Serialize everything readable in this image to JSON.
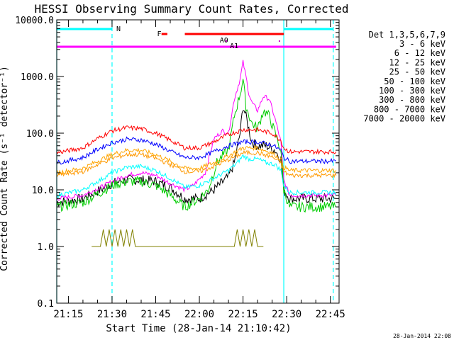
{
  "chart_data": {
    "type": "line",
    "title": "HESSI Observing Summary Count Rates, Corrected",
    "xlabel": "Start Time (28-Jan-14 21:10:42)",
    "ylabel": "Corrected Count Rate (s⁻¹ detector⁻¹)",
    "y_scale": "log",
    "ylim": [
      0.1,
      10000
    ],
    "xlim": [
      "21:11:00",
      "22:48:00"
    ],
    "x_ticks": [
      "21:15",
      "21:30",
      "21:45",
      "22:00",
      "22:15",
      "22:30",
      "22:45"
    ],
    "y_ticks": [
      "0.1",
      "1.0",
      "10.0",
      "100.0",
      "1000.0",
      "10000.0"
    ],
    "legend_title": "Det 1,3,5,6,7,9",
    "legend_position": "right",
    "series": [
      {
        "name": "3 - 6 keV",
        "color": "#000000",
        "x": [
          "21:11",
          "21:20",
          "21:26",
          "21:30",
          "21:35",
          "21:40",
          "21:45",
          "21:50",
          "21:55",
          "22:00",
          "22:05",
          "22:10",
          "22:12",
          "22:14",
          "22:15",
          "22:16",
          "22:18",
          "22:20",
          "22:23",
          "22:26",
          "22:28",
          "22:29",
          "22:31",
          "22:35",
          "22:40",
          "22:47"
        ],
        "values": [
          6,
          7,
          10,
          13,
          15,
          15,
          14,
          11,
          7,
          7,
          10,
          17,
          30,
          100,
          300,
          200,
          70,
          60,
          60,
          50,
          35,
          10,
          7,
          7,
          7,
          7
        ]
      },
      {
        "name": "6 - 12 keV",
        "color": "#ff00ff",
        "x": [
          "21:11",
          "21:20",
          "21:26",
          "21:30",
          "21:35",
          "21:40",
          "21:45",
          "21:50",
          "21:55",
          "21:58",
          "22:02",
          "22:05",
          "22:08",
          "22:10",
          "22:12",
          "22:14",
          "22:15",
          "22:16",
          "22:17",
          "22:18",
          "22:20",
          "22:22",
          "22:24",
          "22:26",
          "22:28",
          "22:29",
          "22:31",
          "22:35",
          "22:40",
          "22:47"
        ],
        "values": [
          7,
          8,
          11,
          14,
          18,
          20,
          18,
          13,
          10,
          12,
          20,
          80,
          110,
          100,
          400,
          900,
          1800,
          1000,
          500,
          350,
          250,
          450,
          400,
          180,
          70,
          15,
          8,
          8,
          8,
          8
        ]
      },
      {
        "name": "12 - 25 keV",
        "color": "#00cc00",
        "x": [
          "21:11",
          "21:20",
          "21:26",
          "21:30",
          "21:35",
          "21:40",
          "21:45",
          "21:50",
          "21:55",
          "22:00",
          "22:03",
          "22:06",
          "22:08",
          "22:10",
          "22:12",
          "22:14",
          "22:15",
          "22:16",
          "22:18",
          "22:20",
          "22:22",
          "22:24",
          "22:26",
          "22:28",
          "22:29",
          "22:31",
          "22:35",
          "22:40",
          "22:47"
        ],
        "values": [
          5,
          6,
          9,
          12,
          14,
          14,
          12,
          8,
          5,
          7,
          10,
          30,
          40,
          50,
          200,
          500,
          900,
          300,
          150,
          120,
          250,
          200,
          100,
          50,
          10,
          5,
          5,
          5,
          5
        ]
      },
      {
        "name": "25 - 50 keV",
        "color": "#00ffff",
        "x": [
          "21:11",
          "21:20",
          "21:26",
          "21:30",
          "21:35",
          "21:40",
          "21:45",
          "21:50",
          "21:55",
          "22:00",
          "22:05",
          "22:10",
          "22:13",
          "22:15",
          "22:17",
          "22:20",
          "22:23",
          "22:26",
          "22:28",
          "22:29",
          "22:31",
          "22:35",
          "22:40",
          "22:47"
        ],
        "values": [
          8,
          10,
          15,
          20,
          25,
          26,
          22,
          16,
          11,
          12,
          16,
          22,
          30,
          40,
          35,
          35,
          30,
          28,
          22,
          12,
          9,
          9,
          9,
          9
        ]
      },
      {
        "name": "50 - 100 keV",
        "color": "#ffa500",
        "x": [
          "21:11",
          "21:20",
          "21:25",
          "21:30",
          "21:35",
          "21:40",
          "21:45",
          "21:50",
          "21:55",
          "22:00",
          "22:05",
          "22:10",
          "22:15",
          "22:20",
          "22:25",
          "22:28",
          "22:29",
          "22:31",
          "22:35",
          "22:40",
          "22:47"
        ],
        "values": [
          20,
          24,
          32,
          42,
          50,
          50,
          42,
          32,
          24,
          24,
          30,
          40,
          55,
          55,
          45,
          35,
          25,
          22,
          22,
          22,
          22
        ]
      },
      {
        "name": "100 - 300 keV",
        "color": "#ff0000",
        "x": [
          "21:11",
          "21:20",
          "21:25",
          "21:30",
          "21:35",
          "21:40",
          "21:45",
          "21:50",
          "21:55",
          "22:00",
          "22:05",
          "22:10",
          "22:15",
          "22:20",
          "22:25",
          "22:28",
          "22:29",
          "22:31",
          "22:35",
          "22:40",
          "22:47"
        ],
        "values": [
          45,
          55,
          80,
          110,
          125,
          120,
          100,
          75,
          55,
          55,
          70,
          95,
          115,
          115,
          100,
          75,
          55,
          47,
          47,
          47,
          47
        ]
      },
      {
        "name": "300 - 800 keV",
        "color": "#0000ff",
        "x": [
          "21:11",
          "21:20",
          "21:25",
          "21:30",
          "21:35",
          "21:40",
          "21:45",
          "21:50",
          "21:55",
          "22:00",
          "22:05",
          "22:10",
          "22:15",
          "22:20",
          "22:25",
          "22:28",
          "22:29",
          "22:31",
          "22:35",
          "22:40",
          "22:47"
        ],
        "values": [
          30,
          37,
          52,
          68,
          78,
          76,
          64,
          48,
          37,
          37,
          47,
          60,
          70,
          70,
          62,
          50,
          37,
          32,
          32,
          32,
          32
        ]
      },
      {
        "name": "800 - 7000 keV",
        "color": "#ff9900",
        "x": [
          "21:11",
          "21:20",
          "21:25",
          "21:30",
          "21:35",
          "21:40",
          "21:45",
          "21:50",
          "21:55",
          "22:00",
          "22:05",
          "22:10",
          "22:15",
          "22:20",
          "22:25",
          "22:28",
          "22:29",
          "22:31",
          "22:35",
          "22:40",
          "22:47"
        ],
        "values": [
          18,
          21,
          28,
          36,
          42,
          42,
          36,
          28,
          21,
          21,
          26,
          34,
          45,
          45,
          38,
          30,
          21,
          18,
          18,
          18,
          18
        ]
      },
      {
        "name": "7000 - 20000 keV",
        "color": "#808000",
        "x": [
          "21:23",
          "21:26",
          "21:27",
          "21:28",
          "21:29",
          "21:30",
          "21:31",
          "21:32",
          "21:33",
          "21:34",
          "21:35",
          "21:36",
          "21:37",
          "21:38",
          "21:40",
          "22:10",
          "22:12",
          "22:13",
          "22:14",
          "22:15",
          "22:16",
          "22:17",
          "22:18",
          "22:19",
          "22:20",
          "22:22"
        ],
        "values": [
          1,
          1,
          2,
          1,
          2,
          1,
          2,
          1,
          2,
          1,
          2,
          1,
          2,
          1,
          1,
          1,
          1,
          2,
          1,
          2,
          1,
          2,
          1,
          2,
          1,
          1
        ]
      }
    ],
    "annotations": [
      {
        "text": "N",
        "color": "#00ffff",
        "row": "top",
        "spans": [
          [
            "21:11",
            "21:30"
          ],
          [
            "22:29",
            "22:46"
          ]
        ]
      },
      {
        "text": "F",
        "color": "#ff0000",
        "row": "second",
        "spans": [
          [
            "21:47",
            "21:49"
          ],
          [
            "21:55",
            "22:29"
          ]
        ]
      },
      {
        "text": "A0",
        "color": "#cc00cc",
        "row": "third"
      },
      {
        "text": "A1",
        "color": "#cc00cc",
        "row": "third"
      },
      {
        "text": "",
        "color": "#ff00ff",
        "row": "attenuator",
        "spans": [
          [
            "21:11",
            "22:47"
          ]
        ]
      }
    ],
    "vlines": [
      {
        "x": "21:11",
        "style": "solid",
        "color": "#00ffff"
      },
      {
        "x": "21:30",
        "style": "dashed",
        "color": "#00ffff"
      },
      {
        "x": "22:29",
        "style": "solid",
        "color": "#00ffff"
      },
      {
        "x": "22:46",
        "style": "dashed",
        "color": "#00ffff"
      }
    ],
    "grid": false
  },
  "footer": {
    "timestamp": "28-Jan-2014 22:08"
  }
}
